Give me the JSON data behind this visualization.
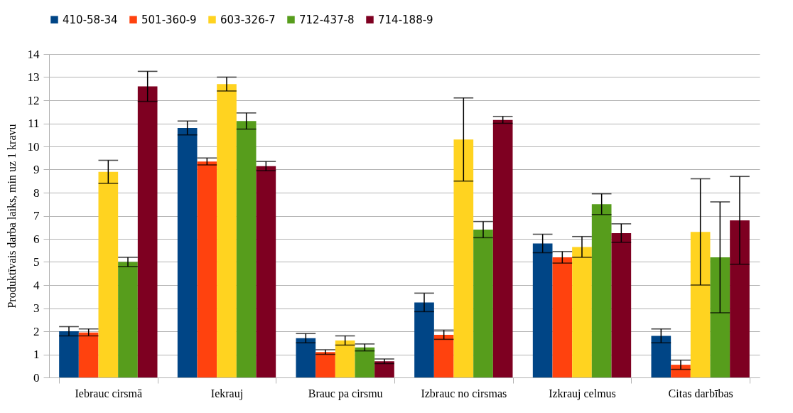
{
  "chart_data": {
    "type": "bar",
    "ylabel": "Produktīvais darba laiks, min uz 1 kravu",
    "categories": [
      "Iebrauc cirsmā",
      "Iekrauj",
      "Brauc pa cirsmu",
      "Izbrauc no cirsmas",
      "Izkrauj celmus",
      "Citas darbības"
    ],
    "series": [
      {
        "name": "410-58-34",
        "color": "#004586",
        "values": [
          2.0,
          10.8,
          1.7,
          3.25,
          5.8,
          1.8
        ],
        "errors": [
          0.2,
          0.3,
          0.2,
          0.4,
          0.4,
          0.3
        ]
      },
      {
        "name": "501-360-9",
        "color": "#ff420e",
        "values": [
          1.95,
          9.35,
          1.1,
          1.85,
          5.2,
          0.55
        ],
        "errors": [
          0.15,
          0.15,
          0.1,
          0.2,
          0.25,
          0.2
        ]
      },
      {
        "name": "603-326-7",
        "color": "#ffd320",
        "values": [
          8.9,
          12.7,
          1.6,
          10.3,
          5.65,
          6.3
        ],
        "errors": [
          0.5,
          0.3,
          0.2,
          1.8,
          0.45,
          2.3
        ]
      },
      {
        "name": "712-437-8",
        "color": "#579d1c",
        "values": [
          5.0,
          11.1,
          1.3,
          6.4,
          7.5,
          5.2
        ],
        "errors": [
          0.2,
          0.35,
          0.15,
          0.35,
          0.45,
          2.4
        ]
      },
      {
        "name": "714-188-9",
        "color": "#7e0021",
        "values": [
          12.6,
          9.15,
          0.7,
          11.15,
          6.25,
          6.8
        ],
        "errors": [
          0.65,
          0.2,
          0.1,
          0.15,
          0.4,
          1.9
        ]
      }
    ],
    "ylim": [
      0,
      14
    ],
    "yticks": [
      0,
      1,
      2,
      3,
      4,
      5,
      6,
      7,
      8,
      9,
      10,
      11,
      12,
      13,
      14
    ],
    "grid": "y",
    "legend": "top"
  }
}
